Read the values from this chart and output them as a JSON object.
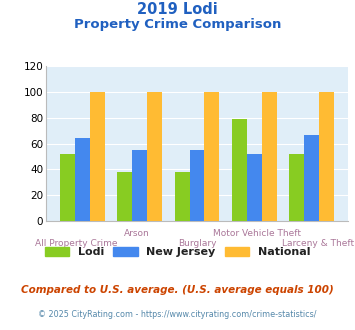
{
  "title_line1": "2019 Lodi",
  "title_line2": "Property Crime Comparison",
  "title_color": "#2060c0",
  "categories": [
    "All Property Crime",
    "Arson",
    "Burglary",
    "Motor Vehicle Theft",
    "Larceny & Theft"
  ],
  "lodi": [
    52,
    38,
    38,
    79,
    52
  ],
  "new_jersey": [
    64,
    55,
    55,
    52,
    67
  ],
  "national": [
    100,
    100,
    100,
    100,
    100
  ],
  "lodi_color": "#88cc22",
  "nj_color": "#4488ee",
  "national_color": "#ffbb33",
  "ylim": [
    0,
    120
  ],
  "yticks": [
    0,
    20,
    40,
    60,
    80,
    100,
    120
  ],
  "xlabel_color": "#aa7799",
  "legend_labels": [
    "Lodi",
    "New Jersey",
    "National"
  ],
  "footnote1": "Compared to U.S. average. (U.S. average equals 100)",
  "footnote2": "© 2025 CityRating.com - https://www.cityrating.com/crime-statistics/",
  "footnote1_color": "#cc4400",
  "footnote2_color": "#5588aa",
  "bg_color": "#e0eef8",
  "fig_bg": "#ffffff"
}
